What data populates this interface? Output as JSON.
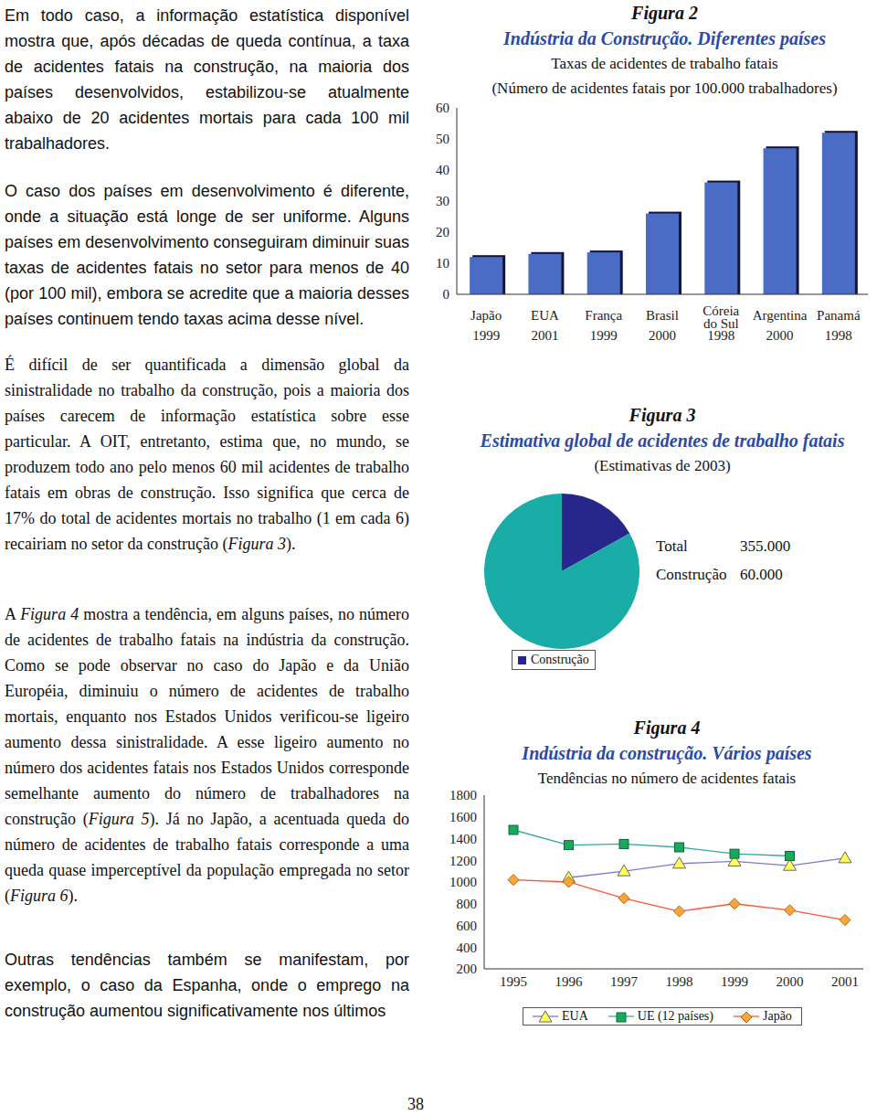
{
  "document": {
    "paragraphs": [
      [
        "Em todo caso, a informação estatística disponível mostra que, após décadas de queda contínua, a taxa de acidentes fatais na construção, na maioria dos países desenvolvidos, estabilizou-se atualmente abaixo de 20 acidentes mortais para cada 100 mil trabalhadores."
      ],
      [
        "O caso dos países em desenvolvimento é diferente, onde a situação está longe de ser uniforme. Alguns países em desenvolvimento conseguiram diminuir suas taxas de acidentes fatais no setor para menos de 40 (por 100 mil), embora se acredite que a maioria desses países continuem tendo taxas acima desse nível."
      ],
      [
        "É difícil de ser quantificada a dimensão global da sinistralidade no trabalho da construção, pois a maioria dos países carecem de informação estatística sobre esse particular. A OIT, entretanto, estima que, no mundo, se produzem todo ano pelo menos 60 mil acidentes de trabalho fatais em obras de construção. Isso significa que cerca de 17% do total de acidentes mortais no trabalho (1 em cada 6) recairiam no setor da construção (",
        {
          "italic": "Figura 3"
        },
        ")."
      ],
      [
        "A ",
        {
          "italic": "Figura 4"
        },
        " mostra a tendência, em alguns países, no número de acidentes de trabalho fatais na indústria da construção. Como se pode observar no caso do Japão e da União Européia, diminuiu o número de acidentes de trabalho mortais, enquanto nos Estados Unidos verificou-se ligeiro aumento dessa sinistralidade. A esse ligeiro aumento no número dos acidentes fatais nos Estados Unidos corresponde semelhante aumento do número de trabalhadores na construção (",
        {
          "italic": "Figura 5"
        },
        "). Já no Japão, a acentuada queda do número de acidentes de trabalho fatais corresponde a uma queda quase imperceptível da população empregada no setor (",
        {
          "italic": "Figura 6"
        },
        ")."
      ],
      [
        "Outras tendências também se manifestam, por exemplo, o caso da Espanha, onde o emprego na construção aumentou significativamente nos últimos"
      ]
    ],
    "page_number": "38"
  },
  "chart_data": [
    {
      "type": "bar",
      "figure": "Figura 2",
      "title": "Indústria da Construção. Diferentes países",
      "subtitle": "Taxas de acidentes de trabalho fatais",
      "y_label": "(Número de acidentes fatais por 100.000 trabalhadores)",
      "categories": [
        "Japão",
        "EUA",
        "França",
        "Brasil",
        "Córeia do Sul",
        "Argentina",
        "Panamá"
      ],
      "years": [
        "1999",
        "2001",
        "1999",
        "2000",
        "1998",
        "2000",
        "1998"
      ],
      "values": [
        12,
        13,
        13.5,
        26,
        36,
        47,
        52
      ],
      "color": "#4a6cc4",
      "ylim": [
        0,
        60
      ],
      "yticks": [
        0,
        10,
        20,
        30,
        40,
        50,
        60
      ],
      "grid": false
    },
    {
      "type": "pie",
      "figure": "Figura 3",
      "title": "Estimativa global de acidentes de trabalho fatais",
      "subtitle": "(Estimativas de 2003)",
      "categories": [
        "Construção",
        null
      ],
      "values": [
        60000,
        295000
      ],
      "colors": [
        "#26268c",
        "#1aaca6"
      ],
      "legend": "bottom",
      "annotations": [
        {
          "text": "Total",
          "value": 355000,
          "label": "355.000"
        },
        {
          "text": "Construção",
          "value": 60000,
          "label": "60.000"
        }
      ]
    },
    {
      "type": "line",
      "figure": "Figura 4",
      "title": "Indústria da construção. Vários países",
      "subtitle": "Tendências no número de acidentes fatais",
      "categories": [
        "1995",
        "1996",
        "1997",
        "1998",
        "1999",
        "2000",
        "2001"
      ],
      "series": [
        {
          "name": "EUA",
          "color": "#7a7ad0",
          "marker": "triangle",
          "values": [
            null,
            1040,
            1100,
            1170,
            1190,
            1150,
            1220
          ]
        },
        {
          "name": "UE (12 países)",
          "color": "#33aa99",
          "marker": "square",
          "values": [
            1480,
            1340,
            1350,
            1320,
            1260,
            1240,
            null
          ]
        },
        {
          "name": "Japão",
          "color": "#ff5533",
          "marker": "diamond",
          "values": [
            1020,
            1000,
            850,
            730,
            800,
            740,
            650
          ]
        }
      ],
      "ylim": [
        200,
        1800
      ],
      "yticks": [
        200,
        400,
        600,
        800,
        1000,
        1200,
        1400,
        1600,
        1800
      ],
      "grid": false,
      "legend": "bottom"
    }
  ]
}
